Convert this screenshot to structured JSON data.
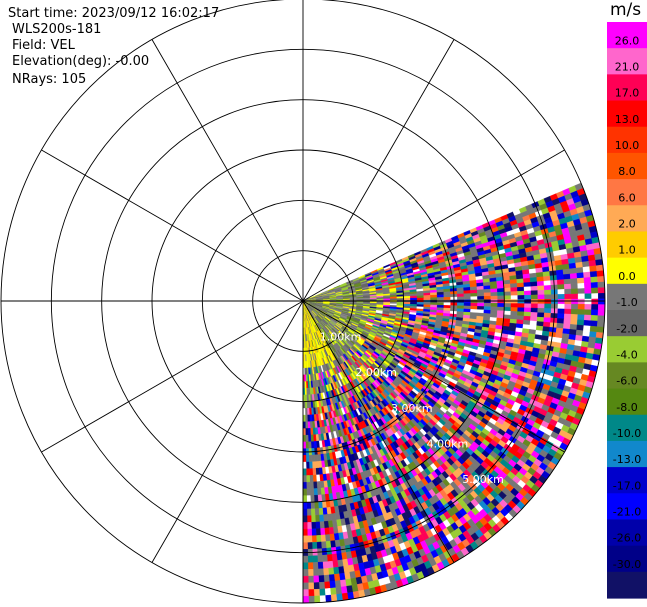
{
  "header": {
    "start_time": "Start time: 2023/09/12 16:02:17",
    "instrument": "WLS200s-181",
    "field": "Field: VEL",
    "elevation": "Elevation(deg): -0.00",
    "nrays": "NRays: 105"
  },
  "colorbar": {
    "unit": "m/s",
    "ticks": [
      "26.0",
      "21.0",
      "17.0",
      "13.0",
      "10.0",
      "8.0",
      "6.0",
      "2.0",
      "1.0",
      "0.0",
      "-1.0",
      "-2.0",
      "-4.0",
      "-6.0",
      "-8.0",
      "-10.0",
      "-13.0",
      "-17.0",
      "-21.0",
      "-26.0",
      "-30.0"
    ],
    "colors": [
      "#ff00ff",
      "#ff66cc",
      "#ff0055",
      "#ff0000",
      "#ff3300",
      "#ff5500",
      "#ff7744",
      "#ffaa55",
      "#ffcc00",
      "#ffff00",
      "#777777",
      "#666666",
      "#99cc33",
      "#668822",
      "#558811",
      "#008888",
      "#1188cc",
      "#0000cc",
      "#0000ff",
      "#0000aa",
      "#000088",
      "#111166"
    ]
  },
  "chart_data": {
    "type": "ppi",
    "field": "VEL",
    "unit": "m/s",
    "range_rings": [
      "1.00km",
      "2.00km",
      "3.00km",
      "4.00km",
      "5.00km"
    ],
    "ring_count": 6,
    "spoke_step_deg": 30,
    "sector_azimuth_deg": [
      67,
      180
    ],
    "nrays": 105,
    "max_range_km": 6.0
  },
  "colors": {
    "grid": "#000000",
    "label_text": "#ffffff"
  }
}
